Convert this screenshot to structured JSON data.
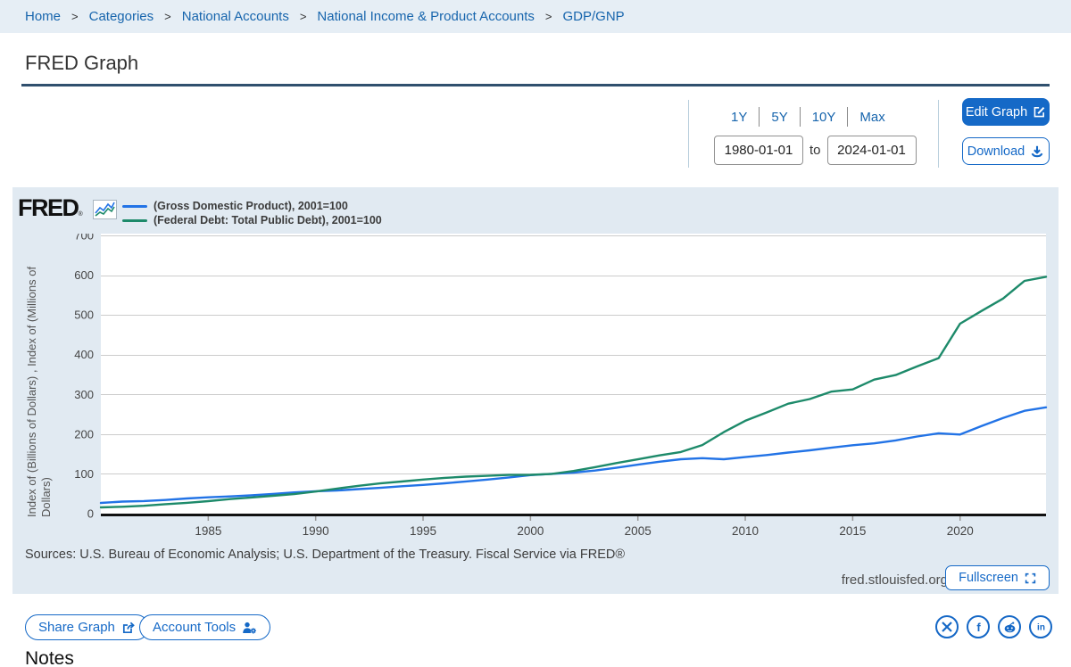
{
  "breadcrumb": {
    "items": [
      "Home",
      "Categories",
      "National Accounts",
      "National Income & Product Accounts",
      "GDP/GNP"
    ],
    "separator": ">"
  },
  "page": {
    "title": "FRED Graph",
    "notes_heading": "Notes"
  },
  "toolbar": {
    "ranges": [
      "1Y",
      "5Y",
      "10Y",
      "Max"
    ],
    "date_start": "1980-01-01",
    "date_to_label": "to",
    "date_end": "2024-01-01",
    "edit_graph_label": "Edit Graph",
    "download_label": "Download"
  },
  "graph": {
    "brand": "FRED",
    "brand_mark": "®",
    "sources": "Sources: U.S. Bureau of Economic Analysis; U.S. Department of the Treasury. Fiscal Service via FRED®",
    "watermark": "fred.stlouisfed.org",
    "fullscreen_label": "Fullscreen"
  },
  "footer": {
    "share_label": "Share Graph",
    "account_label": "Account Tools",
    "social": [
      "x",
      "facebook",
      "reddit",
      "linkedin"
    ]
  },
  "colors": {
    "accent_blue": "#1569c7",
    "link_blue": "#1765ad",
    "breadcrumb_bg": "#e6eef5",
    "graph_bg": "#e1eaf2",
    "title_rule": "#30506e",
    "gridline": "#cccccc"
  },
  "chart_data": {
    "type": "line",
    "title": "",
    "xlabel": "",
    "ylabel": "Index of (Billions of Dollars) , Index of (Millions of Dollars)",
    "ylim": [
      0,
      700
    ],
    "yticks": [
      0,
      100,
      200,
      300,
      400,
      500,
      600,
      700
    ],
    "xlim": [
      1980,
      2024
    ],
    "xticks": [
      1985,
      1990,
      1995,
      2000,
      2005,
      2010,
      2015,
      2020
    ],
    "grid": true,
    "legend_position": "top-left",
    "x": [
      1980,
      1981,
      1982,
      1983,
      1984,
      1985,
      1986,
      1987,
      1988,
      1989,
      1990,
      1991,
      1992,
      1993,
      1994,
      1995,
      1996,
      1997,
      1998,
      1999,
      2000,
      2001,
      2002,
      2003,
      2004,
      2005,
      2006,
      2007,
      2008,
      2009,
      2010,
      2011,
      2012,
      2013,
      2014,
      2015,
      2016,
      2017,
      2018,
      2019,
      2020,
      2021,
      2022,
      2023,
      2024
    ],
    "series": [
      {
        "name": "(Gross Domestic Product), 2001=100",
        "color": "#2273e6",
        "values": [
          27.0,
          30.3,
          31.6,
          34.3,
          38.2,
          41.0,
          43.3,
          45.9,
          49.5,
          53.3,
          56.3,
          58.2,
          61.6,
          64.8,
          68.9,
          72.2,
          76.3,
          81.1,
          85.6,
          91.0,
          96.9,
          100,
          103.3,
          108.3,
          115.4,
          123.2,
          130.6,
          136.8,
          139.6,
          136.8,
          142.2,
          147.4,
          153.6,
          159.2,
          165.9,
          172.0,
          176.7,
          184.1,
          194.0,
          202.1,
          199.0,
          220.3,
          240.6,
          258.6,
          267.4
        ]
      },
      {
        "name": "(Federal Debt: Total Public Debt), 2001=100",
        "color": "#1d8a6a",
        "values": [
          15.6,
          17.2,
          19.7,
          23.7,
          27.1,
          31.4,
          36.6,
          40.5,
          44.8,
          49.2,
          55.7,
          63.1,
          70.0,
          76.0,
          80.8,
          85.7,
          90.0,
          93.2,
          95.2,
          97.4,
          97.7,
          100,
          107.3,
          116.8,
          127.1,
          136.6,
          146.5,
          155.1,
          172.6,
          205.1,
          233.5,
          254.7,
          276.7,
          288.2,
          306.9,
          312.6,
          337.1,
          348.6,
          370.5,
          391.2,
          477.8,
          510.0,
          541.1,
          585.5,
          595.8
        ]
      }
    ]
  }
}
